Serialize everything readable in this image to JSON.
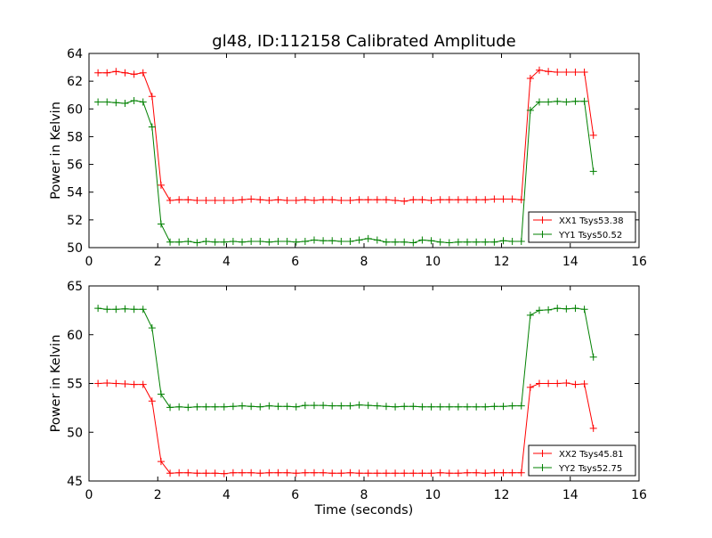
{
  "chart_data": [
    {
      "type": "line",
      "title": "gl48, ID:112158 Calibrated Amplitude",
      "xlabel": "",
      "ylabel": "Power in Kelvin",
      "xlim": [
        0,
        16
      ],
      "ylim": [
        50,
        64
      ],
      "xticks": [
        0,
        2,
        4,
        6,
        8,
        10,
        12,
        14,
        16
      ],
      "yticks": [
        50,
        52,
        54,
        56,
        58,
        60,
        62,
        64
      ],
      "grid": false,
      "legend_position": "lower-right",
      "x": [
        0.262,
        0.524,
        0.786,
        1.048,
        1.31,
        1.572,
        1.834,
        2.096,
        2.358,
        2.62,
        2.882,
        3.144,
        3.406,
        3.668,
        3.93,
        4.192,
        4.454,
        4.716,
        4.978,
        5.24,
        5.502,
        5.764,
        6.026,
        6.288,
        6.55,
        6.812,
        7.074,
        7.336,
        7.598,
        7.86,
        8.122,
        8.384,
        8.646,
        8.908,
        9.17,
        9.432,
        9.694,
        9.956,
        10.218,
        10.48,
        10.742,
        11.004,
        11.266,
        11.528,
        11.79,
        12.052,
        12.314,
        12.576,
        12.838,
        13.1,
        13.362,
        13.624,
        13.886,
        14.148,
        14.41,
        14.672
      ],
      "series": [
        {
          "name": "XX1 Tsys53.38",
          "color": "#ff0000",
          "values": [
            62.6,
            62.6,
            62.7,
            62.6,
            62.5,
            62.6,
            60.9,
            54.5,
            53.4,
            53.45,
            53.45,
            53.4,
            53.4,
            53.4,
            53.4,
            53.4,
            53.45,
            53.5,
            53.45,
            53.4,
            53.45,
            53.4,
            53.4,
            53.45,
            53.4,
            53.45,
            53.45,
            53.4,
            53.4,
            53.45,
            53.45,
            53.45,
            53.45,
            53.4,
            53.35,
            53.45,
            53.45,
            53.4,
            53.45,
            53.45,
            53.45,
            53.45,
            53.45,
            53.45,
            53.5,
            53.5,
            53.5,
            53.45,
            62.2,
            62.8,
            62.7,
            62.65,
            62.65,
            62.65,
            62.65,
            58.1
          ]
        },
        {
          "name": "YY1 Tsys50.52",
          "color": "#008000",
          "values": [
            60.5,
            60.5,
            60.45,
            60.4,
            60.6,
            60.5,
            58.7,
            51.7,
            50.4,
            50.4,
            50.45,
            50.35,
            50.45,
            50.4,
            50.4,
            50.45,
            50.4,
            50.45,
            50.45,
            50.4,
            50.45,
            50.45,
            50.4,
            50.45,
            50.55,
            50.5,
            50.5,
            50.45,
            50.45,
            50.55,
            50.65,
            50.55,
            50.4,
            50.4,
            50.4,
            50.35,
            50.55,
            50.5,
            50.4,
            50.35,
            50.4,
            50.4,
            50.4,
            50.4,
            50.4,
            50.5,
            50.45,
            50.45,
            59.9,
            60.5,
            60.5,
            60.55,
            60.5,
            60.55,
            60.55,
            55.5
          ]
        }
      ]
    },
    {
      "type": "line",
      "title": "",
      "xlabel": "Time (seconds)",
      "ylabel": "Power in Kelvin",
      "xlim": [
        0,
        16
      ],
      "ylim": [
        45,
        65
      ],
      "xticks": [
        0,
        2,
        4,
        6,
        8,
        10,
        12,
        14,
        16
      ],
      "yticks": [
        45,
        50,
        55,
        60,
        65
      ],
      "grid": false,
      "legend_position": "lower-right",
      "x": [
        0.262,
        0.524,
        0.786,
        1.048,
        1.31,
        1.572,
        1.834,
        2.096,
        2.358,
        2.62,
        2.882,
        3.144,
        3.406,
        3.668,
        3.93,
        4.192,
        4.454,
        4.716,
        4.978,
        5.24,
        5.502,
        5.764,
        6.026,
        6.288,
        6.55,
        6.812,
        7.074,
        7.336,
        7.598,
        7.86,
        8.122,
        8.384,
        8.646,
        8.908,
        9.17,
        9.432,
        9.694,
        9.956,
        10.218,
        10.48,
        10.742,
        11.004,
        11.266,
        11.528,
        11.79,
        12.052,
        12.314,
        12.576,
        12.838,
        13.1,
        13.362,
        13.624,
        13.886,
        14.148,
        14.41,
        14.672
      ],
      "series": [
        {
          "name": "XX2 Tsys45.81",
          "color": "#ff0000",
          "values": [
            55.0,
            55.05,
            55.0,
            54.95,
            54.9,
            54.9,
            53.2,
            47.0,
            45.8,
            45.85,
            45.85,
            45.8,
            45.8,
            45.8,
            45.75,
            45.85,
            45.85,
            45.85,
            45.8,
            45.85,
            45.85,
            45.85,
            45.8,
            45.85,
            45.85,
            45.85,
            45.8,
            45.8,
            45.85,
            45.8,
            45.8,
            45.8,
            45.8,
            45.8,
            45.8,
            45.8,
            45.8,
            45.8,
            45.85,
            45.8,
            45.8,
            45.85,
            45.85,
            45.8,
            45.85,
            45.85,
            45.85,
            45.85,
            54.6,
            55.0,
            55.0,
            55.0,
            55.05,
            54.9,
            54.95,
            50.4
          ]
        },
        {
          "name": "YY2 Tsys52.75",
          "color": "#008000",
          "values": [
            62.7,
            62.6,
            62.6,
            62.65,
            62.6,
            62.6,
            60.7,
            53.9,
            52.55,
            52.6,
            52.55,
            52.6,
            52.6,
            52.6,
            52.6,
            52.65,
            52.7,
            52.65,
            52.6,
            52.7,
            52.65,
            52.65,
            52.6,
            52.75,
            52.75,
            52.75,
            52.7,
            52.7,
            52.7,
            52.8,
            52.75,
            52.7,
            52.65,
            52.6,
            52.65,
            52.65,
            52.6,
            52.6,
            52.6,
            52.6,
            52.6,
            52.6,
            52.6,
            52.6,
            52.65,
            52.65,
            52.7,
            52.7,
            62.0,
            62.5,
            62.55,
            62.7,
            62.65,
            62.7,
            62.6,
            57.7
          ]
        }
      ]
    }
  ]
}
